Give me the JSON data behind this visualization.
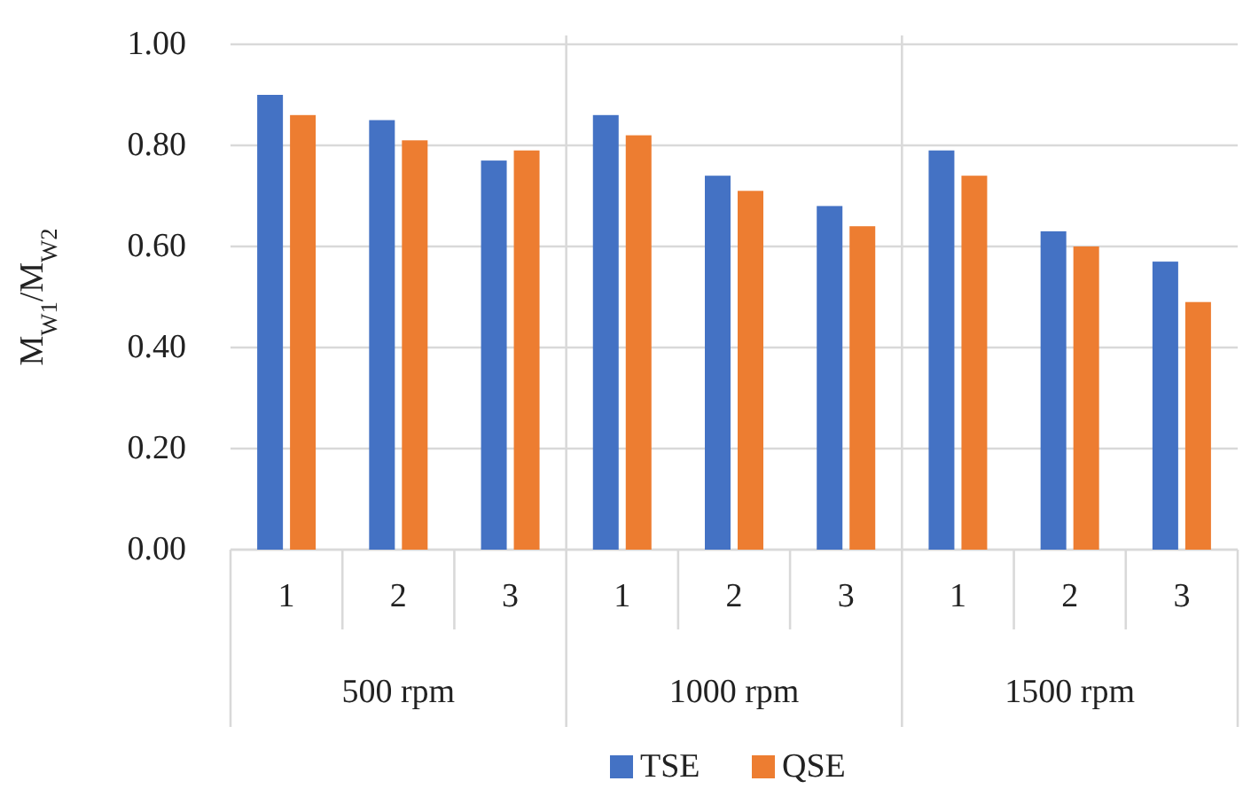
{
  "chart_data": {
    "type": "bar",
    "ylabel": "M$_{W1}$/M$_{W2}$",
    "categories": [
      "1",
      "2",
      "3",
      "1",
      "2",
      "3",
      "1",
      "2",
      "3"
    ],
    "annotations": [
      "500 rpm",
      "1000 rpm",
      "1500 rpm"
    ],
    "series": [
      {
        "name": "TSE",
        "color": "#4472c4",
        "values": [
          0.9,
          0.85,
          0.77,
          0.86,
          0.74,
          0.68,
          0.79,
          0.63,
          0.57
        ]
      },
      {
        "name": "QSE",
        "color": "#ed7d31",
        "values": [
          0.86,
          0.81,
          0.79,
          0.82,
          0.71,
          0.64,
          0.74,
          0.6,
          0.49
        ]
      }
    ],
    "ylim": [
      0,
      1
    ],
    "yticks": [
      {
        "value": 0,
        "label": "0.00"
      },
      {
        "value": 0.2,
        "label": "0.20"
      },
      {
        "value": 0.4,
        "label": "0.40"
      },
      {
        "value": 0.6,
        "label": "0.60"
      },
      {
        "value": 0.8,
        "label": "0.80"
      },
      {
        "value": 1,
        "label": "1.00"
      }
    ],
    "grid": "y",
    "legend": "bottom"
  }
}
